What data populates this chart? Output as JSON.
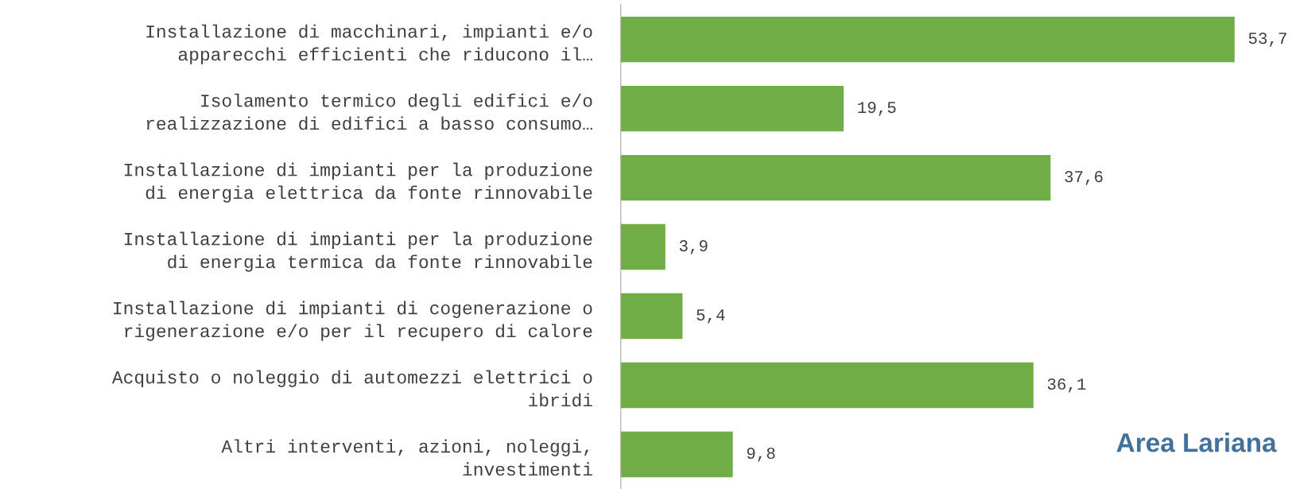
{
  "chart_data": {
    "type": "bar",
    "orientation": "horizontal",
    "title": "Area Lariana",
    "categories": [
      "Installazione di macchinari, impianti e/o\napparecchi efficienti che riducono il…",
      "Isolamento termico degli edifici e/o\nrealizzazione di edifici a basso consumo…",
      "Installazione di impianti per la produzione\ndi energia elettrica da fonte rinnovabile",
      "Installazione di impianti per la produzione\ndi energia termica da fonte rinnovabile",
      "Installazione di impianti di cogenerazione o\nrigenerazione e/o per il recupero di calore",
      "Acquisto o noleggio di automezzi elettrici o\nibridi",
      "Altri interventi, azioni, noleggi,\ninvestimenti"
    ],
    "values": [
      53.7,
      19.5,
      37.6,
      3.9,
      5.4,
      36.1,
      9.8
    ],
    "value_labels": [
      "53,7",
      "19,5",
      "37,6",
      "3,9",
      "5,4",
      "36,1",
      "9,8"
    ],
    "color": "#70ad47",
    "grid": false,
    "legend": false
  }
}
